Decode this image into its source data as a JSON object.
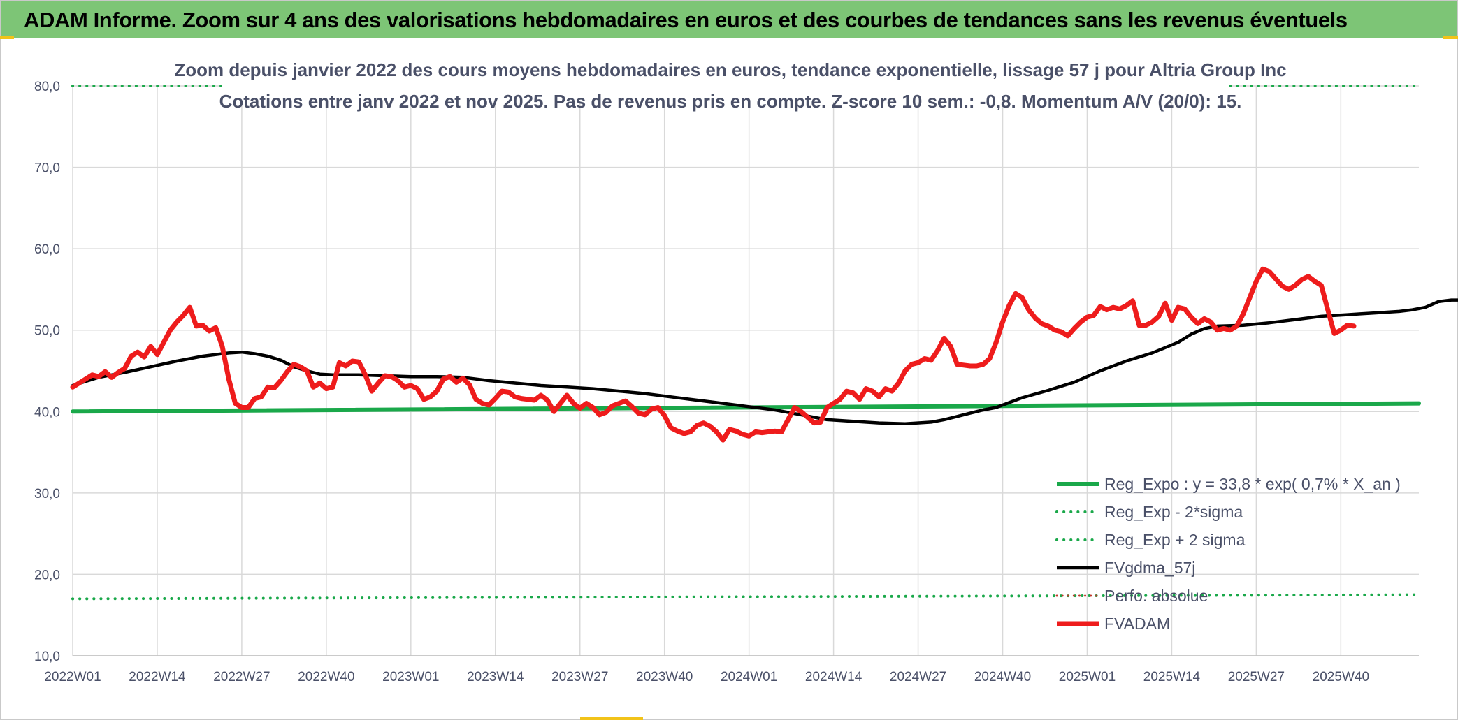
{
  "header": {
    "title": "ADAM Informe. Zoom sur 4 ans des valorisations hebdomadaires en euros et des courbes de tendances sans les revenus éventuels"
  },
  "colors": {
    "banner": "#7dc576",
    "reg_expo": "#1aa84a",
    "sigma_lines": "#1aa84a",
    "fvgdma": "#000000",
    "perfo": "#c0392b",
    "fvadam": "#ee1c1c",
    "grid": "#d9d9d9",
    "text": "#4a5068"
  },
  "chart_data": {
    "type": "line",
    "title": "Zoom depuis janvier 2022 des cours moyens hebdomadaires en euros, tendance exponentielle, lissage 57 j pour Altria Group Inc",
    "subtitle": "Cotations entre janv 2022 et nov 2025. Pas de revenus pris en compte. Z-score 10 sem.: -0,8. Momentum A/V (20/0): 15.",
    "xlabel": "",
    "ylabel": "",
    "ylim": [
      10,
      80
    ],
    "yticks": [
      "10,0",
      "20,0",
      "30,0",
      "40,0",
      "50,0",
      "60,0",
      "70,0",
      "80,0"
    ],
    "x_tick_labels": [
      "2022W01",
      "2022W14",
      "2022W27",
      "2022W40",
      "2023W01",
      "2023W14",
      "2023W27",
      "2023W40",
      "2024W01",
      "2024W14",
      "2024W27",
      "2024W40",
      "2025W01",
      "2025W14",
      "2025W27",
      "2025W40"
    ],
    "weeks_per_tick": 13,
    "n_weeks": 208,
    "grid": true,
    "legend_position": "bottom-right",
    "series": [
      {
        "name": "Reg_Expo : y = 33,8 * exp( 0,7% *  X_an )",
        "style": "solid-thick",
        "color_key": "reg_expo",
        "points": [
          [
            0,
            40.0
          ],
          [
            207,
            41.0
          ]
        ]
      },
      {
        "name": "Reg_Exp - 2*sigma",
        "style": "dotted",
        "color_key": "sigma_lines",
        "points": [
          [
            0,
            17.0
          ],
          [
            207,
            17.5
          ]
        ]
      },
      {
        "name": "Reg_Exp + 2 sigma",
        "style": "dotted",
        "color_key": "sigma_lines",
        "points": [
          [
            0,
            80.0
          ],
          [
            207,
            80.0
          ]
        ]
      },
      {
        "name": "FVgdma_57j",
        "style": "solid",
        "color_key": "fvgdma",
        "points": [
          [
            0,
            43.2
          ],
          [
            4,
            44.2
          ],
          [
            8,
            44.8
          ],
          [
            12,
            45.5
          ],
          [
            16,
            46.2
          ],
          [
            20,
            46.8
          ],
          [
            24,
            47.2
          ],
          [
            26,
            47.3
          ],
          [
            28,
            47.1
          ],
          [
            30,
            46.8
          ],
          [
            32,
            46.3
          ],
          [
            34,
            45.5
          ],
          [
            36,
            45.0
          ],
          [
            38,
            44.6
          ],
          [
            40,
            44.5
          ],
          [
            44,
            44.5
          ],
          [
            48,
            44.4
          ],
          [
            52,
            44.3
          ],
          [
            56,
            44.3
          ],
          [
            60,
            44.2
          ],
          [
            64,
            43.8
          ],
          [
            68,
            43.5
          ],
          [
            72,
            43.2
          ],
          [
            76,
            43.0
          ],
          [
            80,
            42.8
          ],
          [
            84,
            42.5
          ],
          [
            88,
            42.2
          ],
          [
            92,
            41.8
          ],
          [
            96,
            41.4
          ],
          [
            100,
            41.0
          ],
          [
            104,
            40.6
          ],
          [
            108,
            40.2
          ],
          [
            112,
            39.6
          ],
          [
            116,
            39.0
          ],
          [
            120,
            38.8
          ],
          [
            124,
            38.6
          ],
          [
            128,
            38.5
          ],
          [
            132,
            38.7
          ],
          [
            134,
            39.0
          ],
          [
            136,
            39.4
          ],
          [
            138,
            39.8
          ],
          [
            140,
            40.2
          ],
          [
            142,
            40.5
          ],
          [
            146,
            41.7
          ],
          [
            150,
            42.6
          ],
          [
            154,
            43.6
          ],
          [
            158,
            45.0
          ],
          [
            162,
            46.2
          ],
          [
            166,
            47.2
          ],
          [
            170,
            48.5
          ],
          [
            172,
            49.5
          ],
          [
            174,
            50.2
          ],
          [
            176,
            50.5
          ],
          [
            180,
            50.6
          ],
          [
            184,
            50.9
          ],
          [
            188,
            51.3
          ],
          [
            192,
            51.7
          ],
          [
            196,
            51.9
          ],
          [
            198,
            52.0
          ],
          [
            200,
            52.1
          ],
          [
            204,
            52.3
          ],
          [
            206,
            52.5
          ],
          [
            208,
            52.8
          ],
          [
            210,
            53.5
          ],
          [
            212,
            53.7
          ],
          [
            214,
            53.7
          ],
          [
            216,
            53.5
          ],
          [
            218,
            53.4
          ],
          [
            220,
            53.2
          ],
          [
            222,
            52.5
          ],
          [
            225,
            52.0
          ],
          [
            228,
            51.6
          ]
        ]
      },
      {
        "name": "Perfo. absolue",
        "style": "dotted-thin",
        "color_key": "perfo",
        "points": []
      },
      {
        "name": "FVADAM",
        "style": "solid-thick",
        "color_key": "fvadam",
        "points": [
          [
            0,
            43.0
          ],
          [
            2,
            44.0
          ],
          [
            3,
            44.5
          ],
          [
            4,
            44.3
          ],
          [
            5,
            44.9
          ],
          [
            6,
            44.2
          ],
          [
            7,
            44.8
          ],
          [
            8,
            45.3
          ],
          [
            9,
            46.8
          ],
          [
            10,
            47.3
          ],
          [
            11,
            46.7
          ],
          [
            12,
            48.0
          ],
          [
            13,
            47.0
          ],
          [
            14,
            48.5
          ],
          [
            15,
            50.0
          ],
          [
            16,
            51.0
          ],
          [
            17,
            51.8
          ],
          [
            18,
            52.8
          ],
          [
            19,
            50.5
          ],
          [
            20,
            50.6
          ],
          [
            21,
            49.9
          ],
          [
            22,
            50.3
          ],
          [
            23,
            48.0
          ],
          [
            24,
            44.0
          ],
          [
            25,
            41.0
          ],
          [
            26,
            40.5
          ],
          [
            27,
            40.5
          ],
          [
            28,
            41.6
          ],
          [
            29,
            41.8
          ],
          [
            30,
            43.0
          ],
          [
            31,
            42.9
          ],
          [
            32,
            43.8
          ],
          [
            33,
            44.9
          ],
          [
            34,
            45.8
          ],
          [
            35,
            45.5
          ],
          [
            36,
            45.0
          ],
          [
            37,
            43.0
          ],
          [
            38,
            43.5
          ],
          [
            39,
            42.8
          ],
          [
            40,
            43.0
          ],
          [
            41,
            46.0
          ],
          [
            42,
            45.6
          ],
          [
            43,
            46.2
          ],
          [
            44,
            46.1
          ],
          [
            45,
            44.5
          ],
          [
            46,
            42.5
          ],
          [
            47,
            43.5
          ],
          [
            48,
            44.4
          ],
          [
            49,
            44.3
          ],
          [
            50,
            43.8
          ],
          [
            51,
            43.0
          ],
          [
            52,
            43.2
          ],
          [
            53,
            42.8
          ],
          [
            54,
            41.5
          ],
          [
            55,
            41.8
          ],
          [
            56,
            42.5
          ],
          [
            57,
            44.0
          ],
          [
            58,
            44.3
          ],
          [
            59,
            43.6
          ],
          [
            60,
            44.1
          ],
          [
            61,
            43.3
          ],
          [
            62,
            41.5
          ],
          [
            63,
            41.0
          ],
          [
            64,
            40.8
          ],
          [
            65,
            41.6
          ],
          [
            66,
            42.5
          ],
          [
            67,
            42.4
          ],
          [
            68,
            41.8
          ],
          [
            69,
            41.6
          ],
          [
            70,
            41.5
          ],
          [
            71,
            41.4
          ],
          [
            72,
            42.0
          ],
          [
            73,
            41.4
          ],
          [
            74,
            40.0
          ],
          [
            75,
            41.0
          ],
          [
            76,
            42.0
          ],
          [
            77,
            41.0
          ],
          [
            78,
            40.4
          ],
          [
            79,
            41.0
          ],
          [
            80,
            40.5
          ],
          [
            81,
            39.6
          ],
          [
            82,
            39.9
          ],
          [
            83,
            40.7
          ],
          [
            84,
            41.0
          ],
          [
            85,
            41.3
          ],
          [
            86,
            40.6
          ],
          [
            87,
            39.8
          ],
          [
            88,
            39.6
          ],
          [
            89,
            40.3
          ],
          [
            90,
            40.5
          ],
          [
            91,
            39.5
          ],
          [
            92,
            38.0
          ],
          [
            93,
            37.6
          ],
          [
            94,
            37.3
          ],
          [
            95,
            37.5
          ],
          [
            96,
            38.3
          ],
          [
            97,
            38.6
          ],
          [
            98,
            38.2
          ],
          [
            99,
            37.5
          ],
          [
            100,
            36.5
          ],
          [
            101,
            37.8
          ],
          [
            102,
            37.6
          ],
          [
            103,
            37.2
          ],
          [
            104,
            37.0
          ],
          [
            105,
            37.5
          ],
          [
            106,
            37.4
          ],
          [
            107,
            37.5
          ],
          [
            108,
            37.6
          ],
          [
            109,
            37.5
          ],
          [
            110,
            39.0
          ],
          [
            111,
            40.5
          ],
          [
            112,
            40.0
          ],
          [
            113,
            39.3
          ],
          [
            114,
            38.6
          ],
          [
            115,
            38.7
          ],
          [
            116,
            40.5
          ],
          [
            117,
            41.0
          ],
          [
            118,
            41.5
          ],
          [
            119,
            42.5
          ],
          [
            120,
            42.3
          ],
          [
            121,
            41.5
          ],
          [
            122,
            42.8
          ],
          [
            123,
            42.5
          ],
          [
            124,
            41.8
          ],
          [
            125,
            42.8
          ],
          [
            126,
            42.5
          ],
          [
            127,
            43.5
          ],
          [
            128,
            45.0
          ],
          [
            129,
            45.8
          ],
          [
            130,
            46.0
          ],
          [
            131,
            46.5
          ],
          [
            132,
            46.3
          ],
          [
            133,
            47.5
          ],
          [
            134,
            49.0
          ],
          [
            135,
            48.0
          ],
          [
            136,
            45.8
          ],
          [
            137,
            45.7
          ],
          [
            138,
            45.6
          ],
          [
            139,
            45.6
          ],
          [
            140,
            45.8
          ],
          [
            141,
            46.5
          ],
          [
            142,
            48.5
          ],
          [
            143,
            51.0
          ],
          [
            144,
            53.0
          ],
          [
            145,
            54.5
          ],
          [
            146,
            54.0
          ],
          [
            147,
            52.5
          ],
          [
            148,
            51.5
          ],
          [
            149,
            50.8
          ],
          [
            150,
            50.5
          ],
          [
            151,
            50.0
          ],
          [
            152,
            49.8
          ],
          [
            153,
            49.3
          ],
          [
            154,
            50.2
          ],
          [
            155,
            51.0
          ],
          [
            156,
            51.6
          ],
          [
            157,
            51.8
          ],
          [
            158,
            52.9
          ],
          [
            159,
            52.5
          ],
          [
            160,
            52.8
          ],
          [
            161,
            52.6
          ],
          [
            162,
            53.0
          ],
          [
            163,
            53.6
          ],
          [
            164,
            50.6
          ],
          [
            165,
            50.6
          ],
          [
            166,
            51.0
          ],
          [
            167,
            51.7
          ],
          [
            168,
            53.3
          ],
          [
            169,
            51.2
          ],
          [
            170,
            52.8
          ],
          [
            171,
            52.6
          ],
          [
            172,
            51.6
          ],
          [
            173,
            50.8
          ],
          [
            174,
            51.4
          ],
          [
            175,
            51.0
          ],
          [
            176,
            50.0
          ],
          [
            177,
            50.2
          ],
          [
            178,
            50.0
          ],
          [
            179,
            50.5
          ],
          [
            180,
            52.0
          ],
          [
            181,
            54.0
          ],
          [
            182,
            56.0
          ],
          [
            183,
            57.5
          ],
          [
            184,
            57.2
          ],
          [
            185,
            56.3
          ],
          [
            186,
            55.4
          ],
          [
            187,
            55.0
          ],
          [
            188,
            55.5
          ],
          [
            189,
            56.2
          ],
          [
            190,
            56.6
          ],
          [
            191,
            56.0
          ],
          [
            192,
            55.5
          ],
          [
            193,
            52.5
          ],
          [
            194,
            49.6
          ],
          [
            195,
            50.0
          ],
          [
            196,
            50.6
          ],
          [
            197,
            50.5
          ]
        ]
      }
    ]
  }
}
